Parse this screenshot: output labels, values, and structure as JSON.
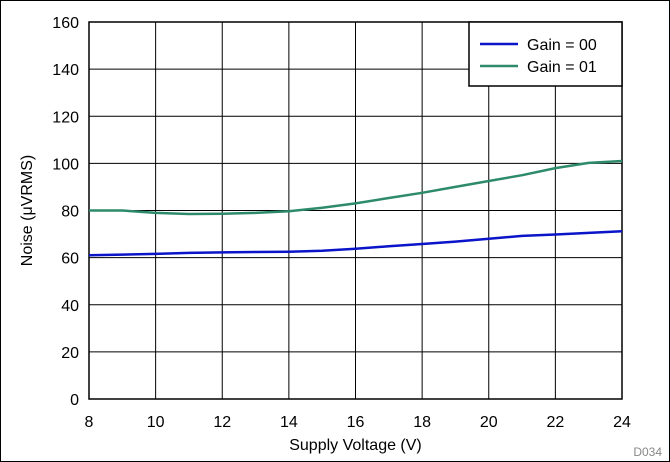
{
  "chart_data": {
    "type": "line",
    "title": "",
    "xlabel": "Supply Voltage (V)",
    "ylabel": "Noise (μVRMS)",
    "xlim": [
      8,
      24
    ],
    "ylim": [
      0,
      160
    ],
    "xticks": [
      "8",
      "10",
      "12",
      "14",
      "16",
      "18",
      "20",
      "22",
      "24"
    ],
    "yticks": [
      "0",
      "20",
      "40",
      "60",
      "80",
      "100",
      "120",
      "140",
      "160"
    ],
    "grid": true,
    "legend_position": "top-right",
    "series": [
      {
        "name": "Gain = 00",
        "color": "#0a14c8",
        "x": [
          8,
          9,
          10,
          11,
          12,
          13,
          14,
          15,
          16,
          17,
          18,
          19,
          20,
          21,
          22,
          23,
          24
        ],
        "y": [
          61,
          61.3,
          61.6,
          62,
          62.2,
          62.4,
          62.5,
          62.9,
          63.8,
          64.8,
          65.8,
          66.8,
          68,
          69.2,
          69.8,
          70.5,
          71.2
        ]
      },
      {
        "name": "Gain = 01",
        "color": "#2e8b6a",
        "x": [
          8,
          9,
          10,
          11,
          12,
          13,
          14,
          15,
          16,
          17,
          18,
          19,
          20,
          21,
          22,
          23,
          24
        ],
        "y": [
          80,
          80,
          79,
          78.5,
          78.6,
          79,
          79.7,
          81.2,
          83,
          85.3,
          87.5,
          90,
          92.5,
          95,
          98,
          100.2,
          101
        ]
      }
    ]
  },
  "figure_id": "D034"
}
